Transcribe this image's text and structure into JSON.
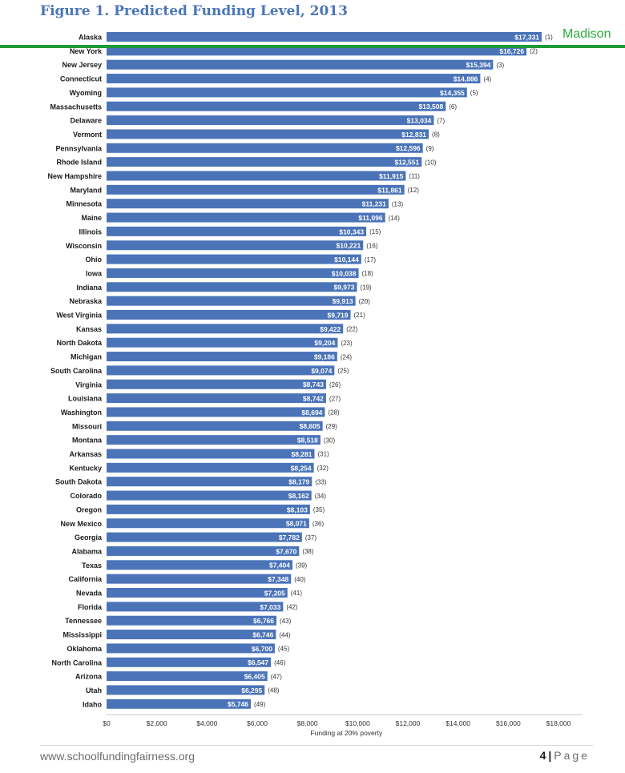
{
  "page": {
    "title": "Figure 1. Predicted Funding Level, 2013",
    "overlay_label": "Madison",
    "footer_url": "www.schoolfundingfairness.org",
    "page_number": "4",
    "page_separator": "|",
    "page_word": "Page"
  },
  "colors": {
    "bar": "#4b74b8",
    "title": "#4a76b8",
    "rule": "#1f9a38",
    "overlay": "#2faa3c"
  },
  "chart_data": {
    "type": "bar",
    "orientation": "horizontal",
    "xlabel": "Funding at 20% poverty",
    "xlim": [
      0,
      18000
    ],
    "xticks": [
      0,
      2000,
      4000,
      6000,
      8000,
      10000,
      12000,
      14000,
      16000,
      18000
    ],
    "xtick_labels": [
      "$0",
      "$2,000",
      "$4,000",
      "$6,000",
      "$8,000",
      "$10,000",
      "$12,000",
      "$14,000",
      "$16,000",
      "$18,000"
    ],
    "grid": false,
    "categories": [
      "Alaska",
      "New York",
      "New Jersey",
      "Connecticut",
      "Wyoming",
      "Massachusetts",
      "Delaware",
      "Vermont",
      "Pennsylvania",
      "Rhode Island",
      "New Hampshire",
      "Maryland",
      "Minnesota",
      "Maine",
      "Illinois",
      "Wisconsin",
      "Ohio",
      "Iowa",
      "Indiana",
      "Nebraska",
      "West Virginia",
      "Kansas",
      "North Dakota",
      "Michigan",
      "South Carolina",
      "Virginia",
      "Louisiana",
      "Washington",
      "Missouri",
      "Montana",
      "Arkansas",
      "Kentucky",
      "South Dakota",
      "Colorado",
      "Oregon",
      "New Mexico",
      "Georgia",
      "Alabama",
      "Texas",
      "California",
      "Nevada",
      "Florida",
      "Tennessee",
      "Mississippi",
      "Oklahoma",
      "North Carolina",
      "Arizona",
      "Utah",
      "Idaho"
    ],
    "values": [
      17331,
      16726,
      15394,
      14886,
      14355,
      13508,
      13034,
      12831,
      12596,
      12551,
      11915,
      11861,
      11231,
      11096,
      10343,
      10221,
      10144,
      10038,
      9973,
      9913,
      9719,
      9422,
      9204,
      9186,
      9074,
      8743,
      8742,
      8694,
      8605,
      8518,
      8281,
      8254,
      8179,
      8162,
      8103,
      8071,
      7782,
      7670,
      7404,
      7348,
      7205,
      7033,
      6766,
      6746,
      6700,
      6547,
      6405,
      6295,
      5746
    ],
    "value_labels": [
      "$17,331",
      "$16,726",
      "$15,394",
      "$14,886",
      "$14,355",
      "$13,508",
      "$13,034",
      "$12,831",
      "$12,596",
      "$12,551",
      "$11,915",
      "$11,861",
      "$11,231",
      "$11,096",
      "$10,343",
      "$10,221",
      "$10,144",
      "$10,038",
      "$9,973",
      "$9,913",
      "$9,719",
      "$9,422",
      "$9,204",
      "$9,186",
      "$9,074",
      "$8,743",
      "$8,742",
      "$8,694",
      "$8,605",
      "$8,518",
      "$8,281",
      "$8,254",
      "$8,179",
      "$8,162",
      "$8,103",
      "$8,071",
      "$7,782",
      "$7,670",
      "$7,404",
      "$7,348",
      "$7,205",
      "$7,033",
      "$6,766",
      "$6,746",
      "$6,700",
      "$6,547",
      "$6,405",
      "$6,295",
      "$5,746"
    ],
    "rank_labels": [
      "(1)",
      "(2)",
      "(3)",
      "(4)",
      "(5)",
      "(6)",
      "(7)",
      "(8)",
      "(9)",
      "(10)",
      "(11)",
      "(12)",
      "(13)",
      "(14)",
      "(15)",
      "(16)",
      "(17)",
      "(18)",
      "(19)",
      "(20)",
      "(21)",
      "(22)",
      "(23)",
      "(24)",
      "(25)",
      "(26)",
      "(27)",
      "(28)",
      "(29)",
      "(30)",
      "(31)",
      "(32)",
      "(33)",
      "(34)",
      "(35)",
      "(36)",
      "(37)",
      "(38)",
      "(39)",
      "(40)",
      "(41)",
      "(42)",
      "(43)",
      "(44)",
      "(45)",
      "(46)",
      "(47)",
      "(48)",
      "(49)"
    ]
  }
}
